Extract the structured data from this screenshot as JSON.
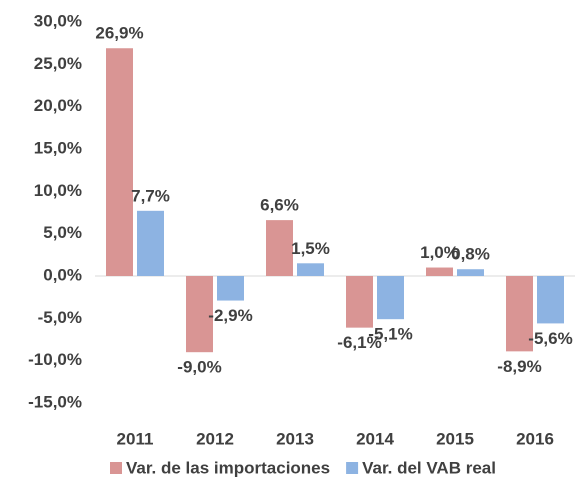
{
  "chart_data": {
    "type": "bar",
    "categories": [
      "2011",
      "2012",
      "2013",
      "2014",
      "2015",
      "2016"
    ],
    "series": [
      {
        "name": "Var. de las importaciones",
        "color": "#d99594",
        "values": [
          26.9,
          -9.0,
          6.6,
          -6.1,
          1.0,
          -8.9
        ],
        "value_labels": [
          "26,9%",
          "-9,0%",
          "6,6%",
          "-6,1%",
          "1,0%",
          "-8,9%"
        ]
      },
      {
        "name": "Var. del VAB real",
        "color": "#8db3e2",
        "values": [
          7.7,
          -2.9,
          1.5,
          -5.1,
          0.8,
          -5.6
        ],
        "value_labels": [
          "7,7%",
          "-2,9%",
          "1,5%",
          "-5,1%",
          "0,8%",
          "-5,6%"
        ]
      }
    ],
    "ylim": [
      -15,
      30
    ],
    "yticks": [
      {
        "value": 30,
        "label": "30,0%"
      },
      {
        "value": 25,
        "label": "25,0%"
      },
      {
        "value": 20,
        "label": "20,0%"
      },
      {
        "value": 15,
        "label": "15,0%"
      },
      {
        "value": 10,
        "label": "10,0%"
      },
      {
        "value": 5,
        "label": "5,0%"
      },
      {
        "value": 0,
        "label": "0,0%"
      },
      {
        "value": -5,
        "label": "-5,0%"
      },
      {
        "value": -10,
        "label": "-10,0%"
      },
      {
        "value": -15,
        "label": "-15,0%"
      }
    ],
    "legend": "bottom"
  }
}
